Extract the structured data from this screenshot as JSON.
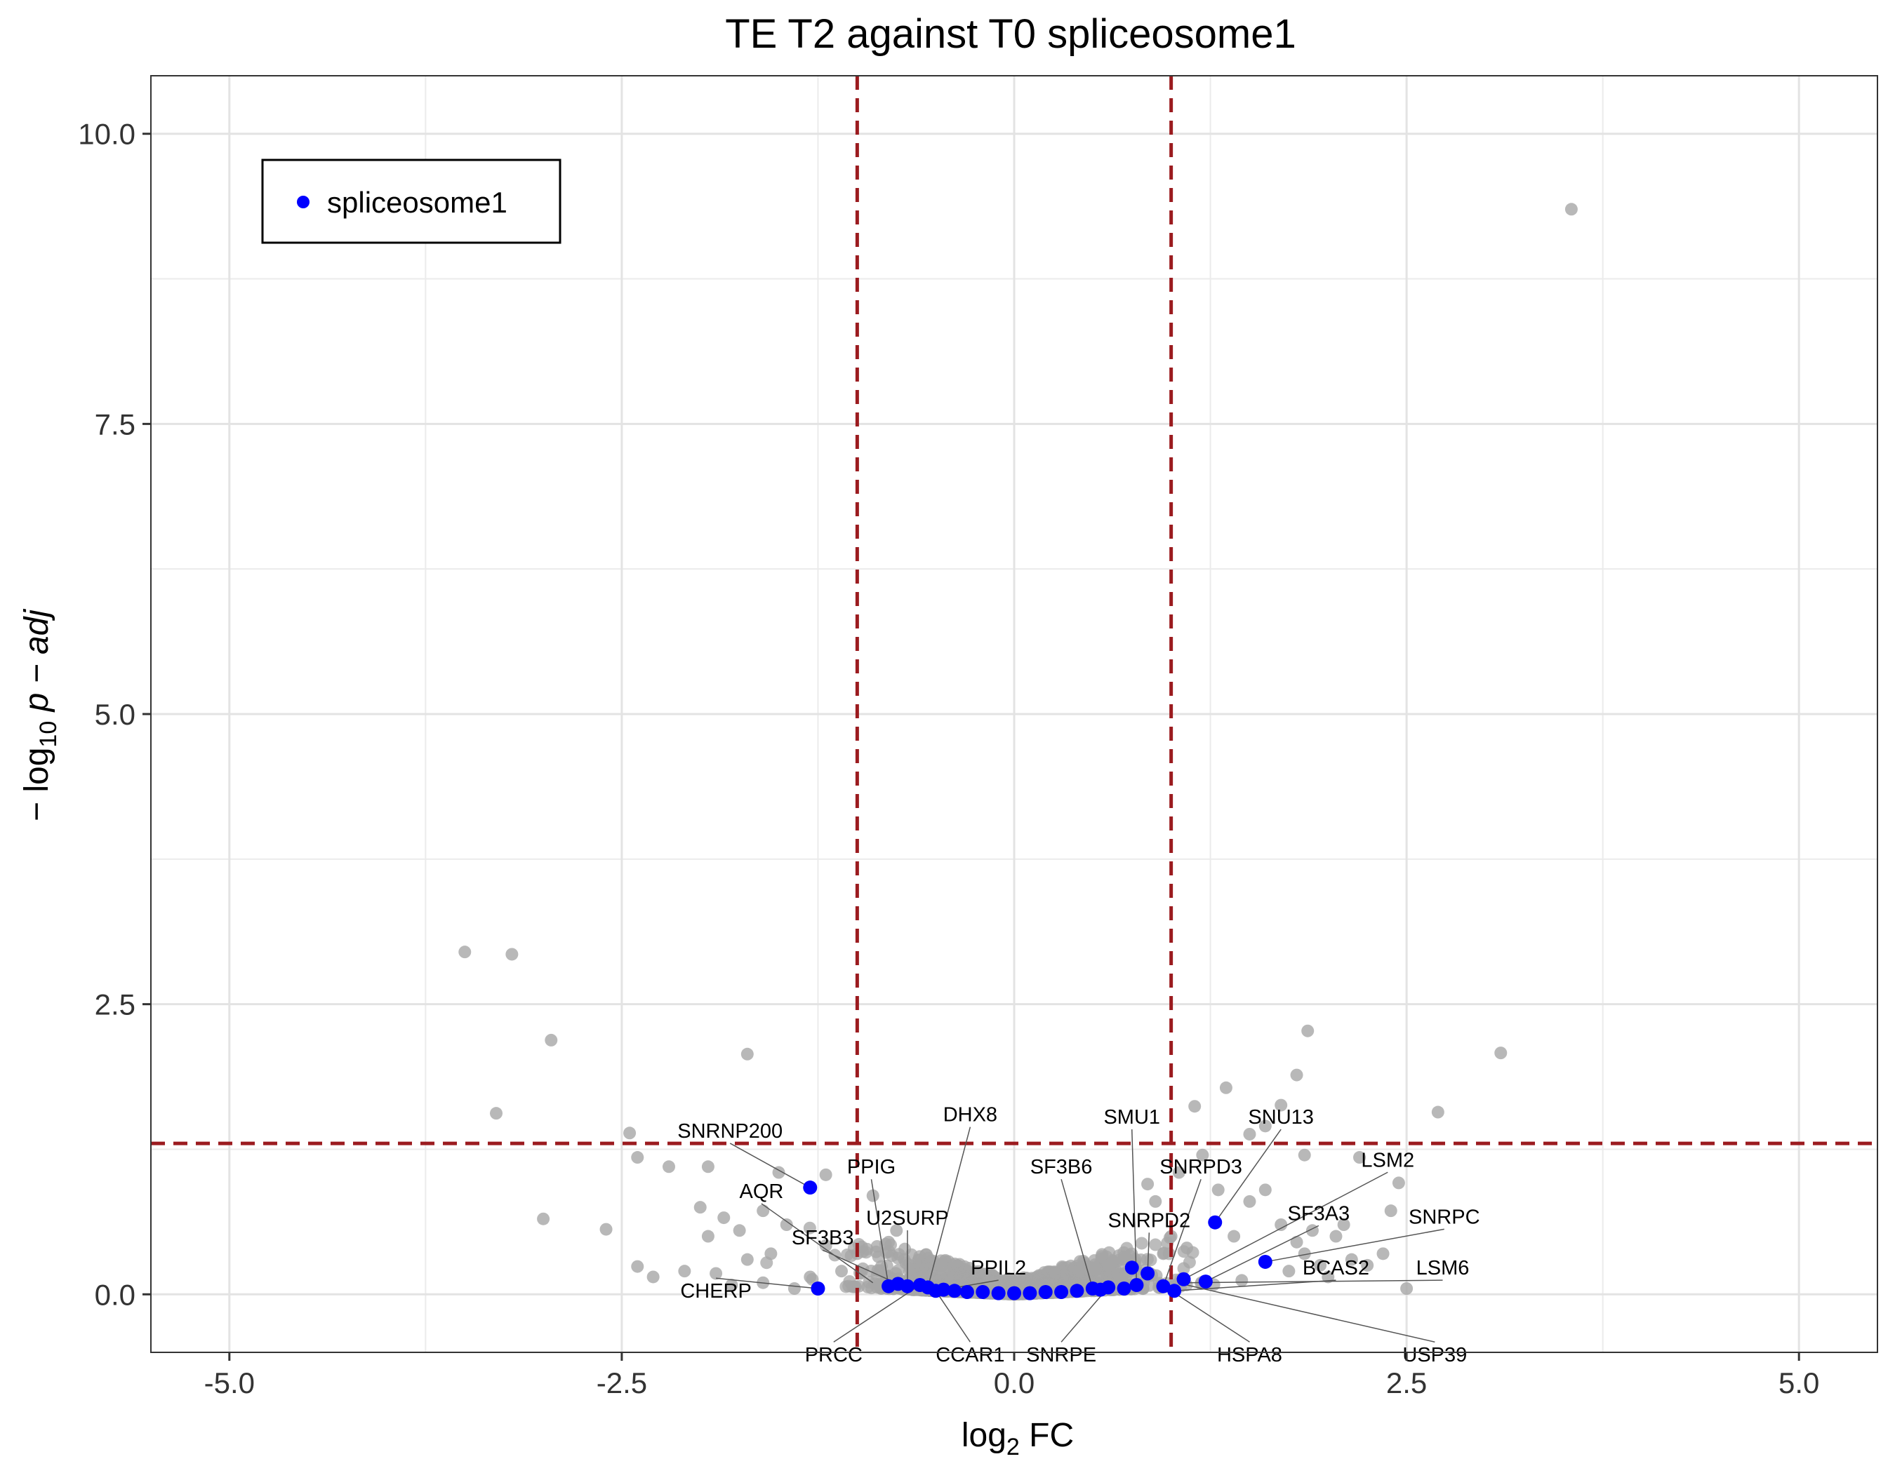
{
  "chart_data": {
    "type": "scatter",
    "title": "TE T2 against T0 spliceosome1",
    "xlabel_main": "log",
    "xlabel_sub": "2",
    "xlabel_rest": " FC",
    "ylabel_prefix": "− log",
    "ylabel_sub": "10",
    "ylabel_rest": " p − adj",
    "xlim": [
      -5.5,
      5.5
    ],
    "ylim": [
      -0.5,
      10.5
    ],
    "x_ticks": [
      {
        "value": -5.0,
        "label": "-5.0"
      },
      {
        "value": -2.5,
        "label": "-2.5"
      },
      {
        "value": 0.0,
        "label": "0.0"
      },
      {
        "value": 2.5,
        "label": "2.5"
      },
      {
        "value": 5.0,
        "label": "5.0"
      }
    ],
    "y_ticks": [
      {
        "value": 0.0,
        "label": "0.0"
      },
      {
        "value": 2.5,
        "label": "2.5"
      },
      {
        "value": 5.0,
        "label": "5.0"
      },
      {
        "value": 7.5,
        "label": "7.5"
      },
      {
        "value": 10.0,
        "label": "10.0"
      }
    ],
    "grid": true,
    "thresholds": {
      "x": [
        -1.0,
        1.0
      ],
      "y": 1.3
    },
    "legend": {
      "position": "top-left",
      "entries": [
        {
          "name": "spliceosome1",
          "color": "#0000ff"
        }
      ]
    },
    "colors": {
      "background_points": "#a6a6a6",
      "highlight_points": "#0000ff",
      "threshold_lines": "#9b1b1f"
    },
    "series": [
      {
        "name": "background",
        "points": [
          [
            3.55,
            9.35
          ],
          [
            -3.5,
            2.95
          ],
          [
            -3.2,
            2.93
          ],
          [
            -2.95,
            2.19
          ],
          [
            3.1,
            2.08
          ],
          [
            -1.7,
            2.07
          ],
          [
            1.87,
            2.27
          ],
          [
            1.8,
            1.89
          ],
          [
            1.35,
            1.78
          ],
          [
            1.15,
            1.62
          ],
          [
            1.7,
            1.63
          ],
          [
            2.7,
            1.57
          ],
          [
            -3.3,
            1.56
          ],
          [
            -2.45,
            1.39
          ],
          [
            -2.4,
            1.18
          ],
          [
            -2.2,
            1.1
          ],
          [
            -1.95,
            1.1
          ],
          [
            -1.5,
            1.05
          ],
          [
            -1.2,
            1.03
          ],
          [
            1.5,
            1.38
          ],
          [
            1.6,
            1.45
          ],
          [
            1.85,
            1.2
          ],
          [
            2.2,
            1.18
          ],
          [
            2.45,
            0.96
          ],
          [
            2.4,
            0.72
          ],
          [
            2.1,
            0.6
          ],
          [
            1.9,
            0.55
          ],
          [
            -3.0,
            0.65
          ],
          [
            -2.6,
            0.56
          ],
          [
            -2.0,
            0.75
          ],
          [
            -1.85,
            0.66
          ],
          [
            -1.6,
            0.72
          ],
          [
            -1.45,
            0.6
          ],
          [
            -1.75,
            0.55
          ],
          [
            -1.95,
            0.5
          ],
          [
            -2.4,
            0.24
          ],
          [
            -2.1,
            0.2
          ],
          [
            -1.7,
            0.3
          ],
          [
            -1.55,
            0.35
          ],
          [
            -0.9,
            0.85
          ],
          [
            -0.75,
            0.55
          ],
          [
            -0.7,
            0.3
          ],
          [
            -0.8,
            0.45
          ],
          [
            0.85,
            0.95
          ],
          [
            0.9,
            0.8
          ],
          [
            1.05,
            1.05
          ],
          [
            1.2,
            1.2
          ],
          [
            1.3,
            0.9
          ],
          [
            1.5,
            0.8
          ],
          [
            1.6,
            0.9
          ],
          [
            1.4,
            0.5
          ],
          [
            1.7,
            0.6
          ],
          [
            1.8,
            0.45
          ],
          [
            2.05,
            0.5
          ],
          [
            2.35,
            0.35
          ],
          [
            2.5,
            0.05
          ],
          [
            2.15,
            0.3
          ],
          [
            1.95,
            0.25
          ],
          [
            1.75,
            0.2
          ],
          [
            2.0,
            0.15
          ],
          [
            -2.3,
            0.15
          ],
          [
            -1.9,
            0.18
          ],
          [
            -1.3,
            0.15
          ],
          [
            -1.1,
            0.2
          ],
          [
            -1.0,
            0.35
          ],
          [
            -1.2,
            0.42
          ],
          [
            0.7,
            0.3
          ],
          [
            0.6,
            0.25
          ],
          [
            0.5,
            0.22
          ],
          [
            1.0,
            0.5
          ],
          [
            1.1,
            0.4
          ],
          [
            0.95,
            0.35
          ],
          [
            2.25,
            0.25
          ],
          [
            1.85,
            0.35
          ],
          [
            -1.6,
            0.1
          ],
          [
            -1.8,
            0.08
          ],
          [
            -1.4,
            0.05
          ],
          [
            1.45,
            0.12
          ]
        ]
      },
      {
        "name": "spliceosome1",
        "points": [
          [
            -1.3,
            0.92
          ],
          [
            1.28,
            0.62
          ],
          [
            1.6,
            0.28
          ],
          [
            0.75,
            0.23
          ],
          [
            0.85,
            0.18
          ],
          [
            1.08,
            0.13
          ],
          [
            1.22,
            0.11
          ],
          [
            0.95,
            0.07
          ],
          [
            1.02,
            0.03
          ],
          [
            -1.25,
            0.05
          ],
          [
            -0.8,
            0.07
          ],
          [
            -0.74,
            0.09
          ],
          [
            -0.68,
            0.07
          ],
          [
            -0.6,
            0.08
          ],
          [
            -0.55,
            0.06
          ],
          [
            -0.5,
            0.03
          ],
          [
            -0.45,
            0.04
          ],
          [
            -0.38,
            0.03
          ],
          [
            -0.3,
            0.02
          ],
          [
            -0.2,
            0.02
          ],
          [
            -0.1,
            0.01
          ],
          [
            0.0,
            0.01
          ],
          [
            0.1,
            0.01
          ],
          [
            0.2,
            0.02
          ],
          [
            0.3,
            0.02
          ],
          [
            0.4,
            0.03
          ],
          [
            0.5,
            0.05
          ],
          [
            0.55,
            0.04
          ],
          [
            0.6,
            0.06
          ],
          [
            0.7,
            0.05
          ],
          [
            0.78,
            0.08
          ]
        ]
      }
    ],
    "labels": [
      {
        "text": "SNRNP200",
        "x": -1.3,
        "y": 0.92,
        "lx": -1.81,
        "ly": 1.35
      },
      {
        "text": "PPIG",
        "x": -0.8,
        "y": 0.07,
        "lx": -0.91,
        "ly": 1.04
      },
      {
        "text": "DHX8",
        "x": -0.55,
        "y": 0.06,
        "lx": -0.28,
        "ly": 1.49
      },
      {
        "text": "SMU1",
        "x": 0.78,
        "y": 0.08,
        "lx": 0.75,
        "ly": 1.47
      },
      {
        "text": "SNU13",
        "x": 1.28,
        "y": 0.62,
        "lx": 1.7,
        "ly": 1.47
      },
      {
        "text": "AQR",
        "x": -0.9,
        "y": 0.1,
        "lx": -1.61,
        "ly": 0.83
      },
      {
        "text": "SF3B6",
        "x": 0.5,
        "y": 0.05,
        "lx": 0.3,
        "ly": 1.04
      },
      {
        "text": "SNRPD3",
        "x": 0.95,
        "y": 0.07,
        "lx": 1.19,
        "ly": 1.04
      },
      {
        "text": "LSM2",
        "x": 1.08,
        "y": 0.13,
        "lx": 2.38,
        "ly": 1.1
      },
      {
        "text": "U2SURP",
        "x": -0.68,
        "y": 0.07,
        "lx": -0.68,
        "ly": 0.6
      },
      {
        "text": "SF3A3",
        "x": 1.22,
        "y": 0.11,
        "lx": 1.94,
        "ly": 0.64
      },
      {
        "text": "SNRPC",
        "x": 1.6,
        "y": 0.28,
        "lx": 2.74,
        "ly": 0.61
      },
      {
        "text": "SNRPD2",
        "x": 0.85,
        "y": 0.18,
        "lx": 0.86,
        "ly": 0.58
      },
      {
        "text": "SF3B3",
        "x": -0.74,
        "y": 0.09,
        "lx": -1.22,
        "ly": 0.43
      },
      {
        "text": "PPIL2",
        "x": -0.45,
        "y": 0.04,
        "lx": -0.1,
        "ly": 0.17
      },
      {
        "text": "BCAS2",
        "x": 1.02,
        "y": 0.03,
        "lx": 2.05,
        "ly": 0.17
      },
      {
        "text": "LSM6",
        "x": 1.1,
        "y": 0.1,
        "lx": 2.73,
        "ly": 0.17
      },
      {
        "text": "CHERP",
        "x": -1.25,
        "y": 0.05,
        "lx": -1.9,
        "ly": -0.03
      },
      {
        "text": "PRCC",
        "x": -0.6,
        "y": 0.08,
        "lx": -1.15,
        "ly": -0.58
      },
      {
        "text": "CCAR1",
        "x": -0.5,
        "y": 0.03,
        "lx": -0.28,
        "ly": -0.58
      },
      {
        "text": "SNRPE",
        "x": 0.6,
        "y": 0.06,
        "lx": 0.3,
        "ly": -0.58
      },
      {
        "text": "HSPA8",
        "x": 1.0,
        "y": 0.03,
        "lx": 1.5,
        "ly": -0.58
      },
      {
        "text": "USP39",
        "x": 1.1,
        "y": 0.08,
        "lx": 2.68,
        "ly": -0.58
      }
    ]
  }
}
